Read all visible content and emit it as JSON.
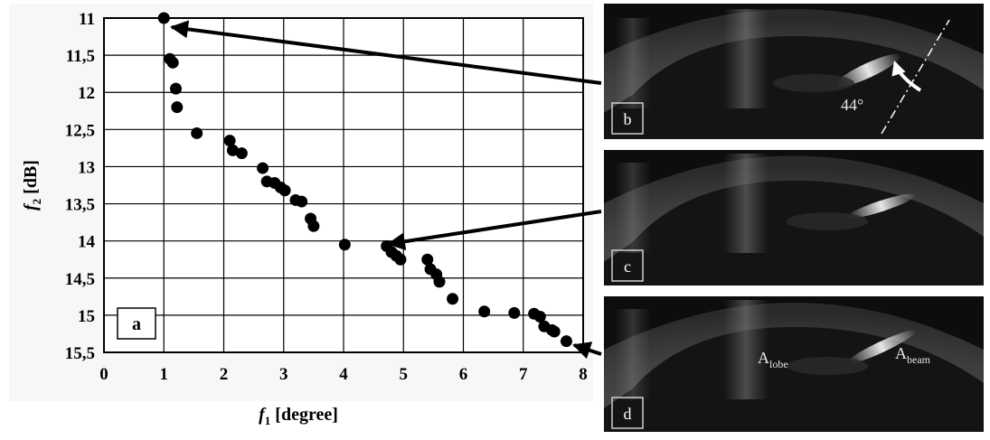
{
  "chart_data": {
    "type": "scatter",
    "xlabel": "f1 [degree]",
    "ylabel": "f2 [dB]",
    "xlim": [
      0,
      8
    ],
    "ylim": [
      11,
      15.5
    ],
    "y_inverted": true,
    "grid": true,
    "x_ticks": [
      "0",
      "1",
      "2",
      "3",
      "4",
      "5",
      "6",
      "7",
      "8"
    ],
    "y_ticks": [
      "11",
      "11,5",
      "12",
      "12,5",
      "13",
      "13,5",
      "14",
      "14,5",
      "15",
      "15,5"
    ],
    "points": [
      {
        "x": 1.0,
        "y": 11.0
      },
      {
        "x": 1.1,
        "y": 11.55
      },
      {
        "x": 1.15,
        "y": 11.6
      },
      {
        "x": 1.2,
        "y": 11.95
      },
      {
        "x": 1.22,
        "y": 12.2
      },
      {
        "x": 1.55,
        "y": 12.55
      },
      {
        "x": 2.1,
        "y": 12.65
      },
      {
        "x": 2.15,
        "y": 12.78
      },
      {
        "x": 2.3,
        "y": 12.82
      },
      {
        "x": 2.65,
        "y": 13.02
      },
      {
        "x": 2.72,
        "y": 13.2
      },
      {
        "x": 2.85,
        "y": 13.22
      },
      {
        "x": 2.95,
        "y": 13.28
      },
      {
        "x": 3.02,
        "y": 13.32
      },
      {
        "x": 3.2,
        "y": 13.45
      },
      {
        "x": 3.3,
        "y": 13.47
      },
      {
        "x": 3.45,
        "y": 13.7
      },
      {
        "x": 3.5,
        "y": 13.8
      },
      {
        "x": 4.02,
        "y": 14.05
      },
      {
        "x": 4.72,
        "y": 14.07
      },
      {
        "x": 4.8,
        "y": 14.15
      },
      {
        "x": 4.88,
        "y": 14.2
      },
      {
        "x": 4.95,
        "y": 14.25
      },
      {
        "x": 5.4,
        "y": 14.25
      },
      {
        "x": 5.45,
        "y": 14.38
      },
      {
        "x": 5.55,
        "y": 14.45
      },
      {
        "x": 5.6,
        "y": 14.55
      },
      {
        "x": 5.82,
        "y": 14.78
      },
      {
        "x": 6.35,
        "y": 14.95
      },
      {
        "x": 6.85,
        "y": 14.97
      },
      {
        "x": 7.18,
        "y": 14.98
      },
      {
        "x": 7.28,
        "y": 15.02
      },
      {
        "x": 7.35,
        "y": 15.15
      },
      {
        "x": 7.48,
        "y": 15.2
      },
      {
        "x": 7.52,
        "y": 15.22
      },
      {
        "x": 7.72,
        "y": 15.35
      }
    ]
  },
  "panel_label": "a",
  "panels": [
    {
      "letter": "b",
      "annotation": "44°"
    },
    {
      "letter": "c"
    },
    {
      "letter": "d",
      "lobe_base": "A",
      "lobe_sub": "lobe",
      "beam_base": "A",
      "beam_sub": "beam"
    }
  ],
  "axis_labels": {
    "x_main": "f",
    "x_sub": "1",
    "x_unit": " [degree]",
    "y_main": "f",
    "y_sub": "2",
    "y_unit": " [dB]"
  },
  "colors": {
    "marker": "#000000",
    "grid": "#000000",
    "panel_bg": "#0d0d0d"
  }
}
